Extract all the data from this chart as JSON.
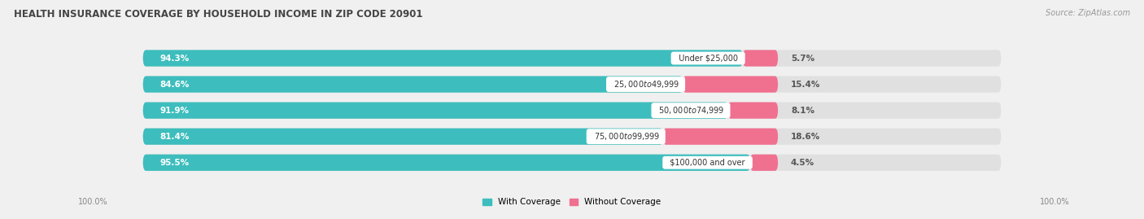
{
  "title": "HEALTH INSURANCE COVERAGE BY HOUSEHOLD INCOME IN ZIP CODE 20901",
  "source": "Source: ZipAtlas.com",
  "categories": [
    "Under $25,000",
    "$25,000 to $49,999",
    "$50,000 to $74,999",
    "$75,000 to $99,999",
    "$100,000 and over"
  ],
  "with_coverage": [
    94.3,
    84.6,
    91.9,
    81.4,
    95.5
  ],
  "without_coverage": [
    5.7,
    15.4,
    8.1,
    18.6,
    4.5
  ],
  "color_with": "#3dbdbd",
  "color_without": "#f07090",
  "color_without_light": "#f4b0c0",
  "bg_color": "#f0f0f0",
  "bar_bg": "#e0e0e0",
  "title_fontsize": 8.5,
  "label_fontsize": 7.5,
  "source_fontsize": 7,
  "legend_fontsize": 7.5,
  "bottom_label": "100.0%"
}
